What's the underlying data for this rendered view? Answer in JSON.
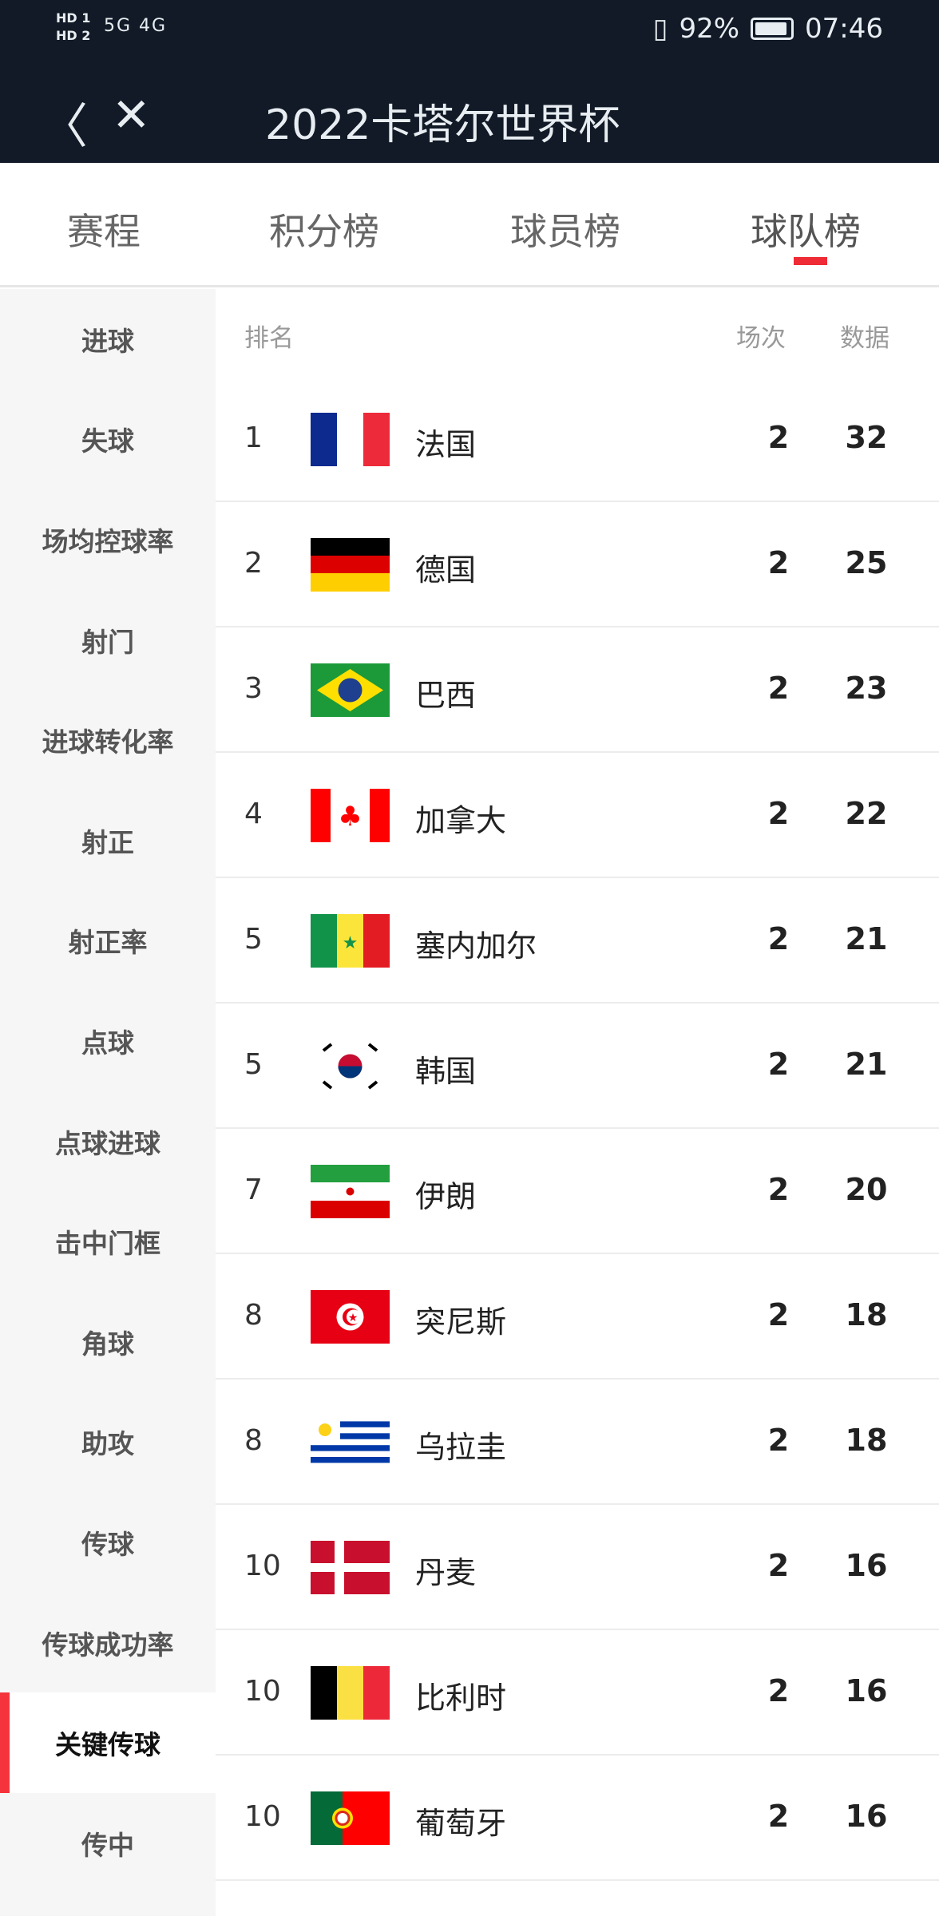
{
  "status_bar": {
    "sim1": "HD 1",
    "sim2": "HD 2",
    "network": "5G 4G",
    "battery_percent": "92%",
    "battery_level": 0.92,
    "time": "07:46"
  },
  "header": {
    "title": "2022卡塔尔世界杯",
    "back_icon": "chevron-left-icon",
    "close_icon": "close-icon"
  },
  "tabs": [
    {
      "label": "赛程"
    },
    {
      "label": "积分榜"
    },
    {
      "label": "球员榜"
    },
    {
      "label": "球队榜",
      "active": true
    }
  ],
  "sidebar": {
    "items": [
      {
        "label": "进球"
      },
      {
        "label": "失球"
      },
      {
        "label": "场均控球率"
      },
      {
        "label": "射门"
      },
      {
        "label": "进球转化率"
      },
      {
        "label": "射正"
      },
      {
        "label": "射正率"
      },
      {
        "label": "点球"
      },
      {
        "label": "点球进球"
      },
      {
        "label": "击中门框"
      },
      {
        "label": "角球"
      },
      {
        "label": "助攻"
      },
      {
        "label": "传球"
      },
      {
        "label": "传球成功率"
      },
      {
        "label": "关键传球",
        "active": true
      },
      {
        "label": "传中"
      }
    ]
  },
  "table": {
    "headers": {
      "rank": "排名",
      "matches": "场次",
      "data": "数据"
    },
    "rows": [
      {
        "rank": "1",
        "team": "法国",
        "flag": "france",
        "matches": "2",
        "value": "32"
      },
      {
        "rank": "2",
        "team": "德国",
        "flag": "germany",
        "matches": "2",
        "value": "25"
      },
      {
        "rank": "3",
        "team": "巴西",
        "flag": "brazil",
        "matches": "2",
        "value": "23"
      },
      {
        "rank": "4",
        "team": "加拿大",
        "flag": "canada",
        "matches": "2",
        "value": "22"
      },
      {
        "rank": "5",
        "team": "塞内加尔",
        "flag": "senegal",
        "matches": "2",
        "value": "21"
      },
      {
        "rank": "5",
        "team": "韩国",
        "flag": "korea",
        "matches": "2",
        "value": "21"
      },
      {
        "rank": "7",
        "team": "伊朗",
        "flag": "iran",
        "matches": "2",
        "value": "20"
      },
      {
        "rank": "8",
        "team": "突尼斯",
        "flag": "tunisia",
        "matches": "2",
        "value": "18"
      },
      {
        "rank": "8",
        "team": "乌拉圭",
        "flag": "uruguay",
        "matches": "2",
        "value": "18"
      },
      {
        "rank": "10",
        "team": "丹麦",
        "flag": "denmark",
        "matches": "2",
        "value": "16"
      },
      {
        "rank": "10",
        "team": "比利时",
        "flag": "belgium",
        "matches": "2",
        "value": "16"
      },
      {
        "rank": "10",
        "team": "葡萄牙",
        "flag": "portugal",
        "matches": "2",
        "value": "16"
      }
    ]
  },
  "colors": {
    "header_bg": "#111a26",
    "accent": "#ef2b35"
  }
}
